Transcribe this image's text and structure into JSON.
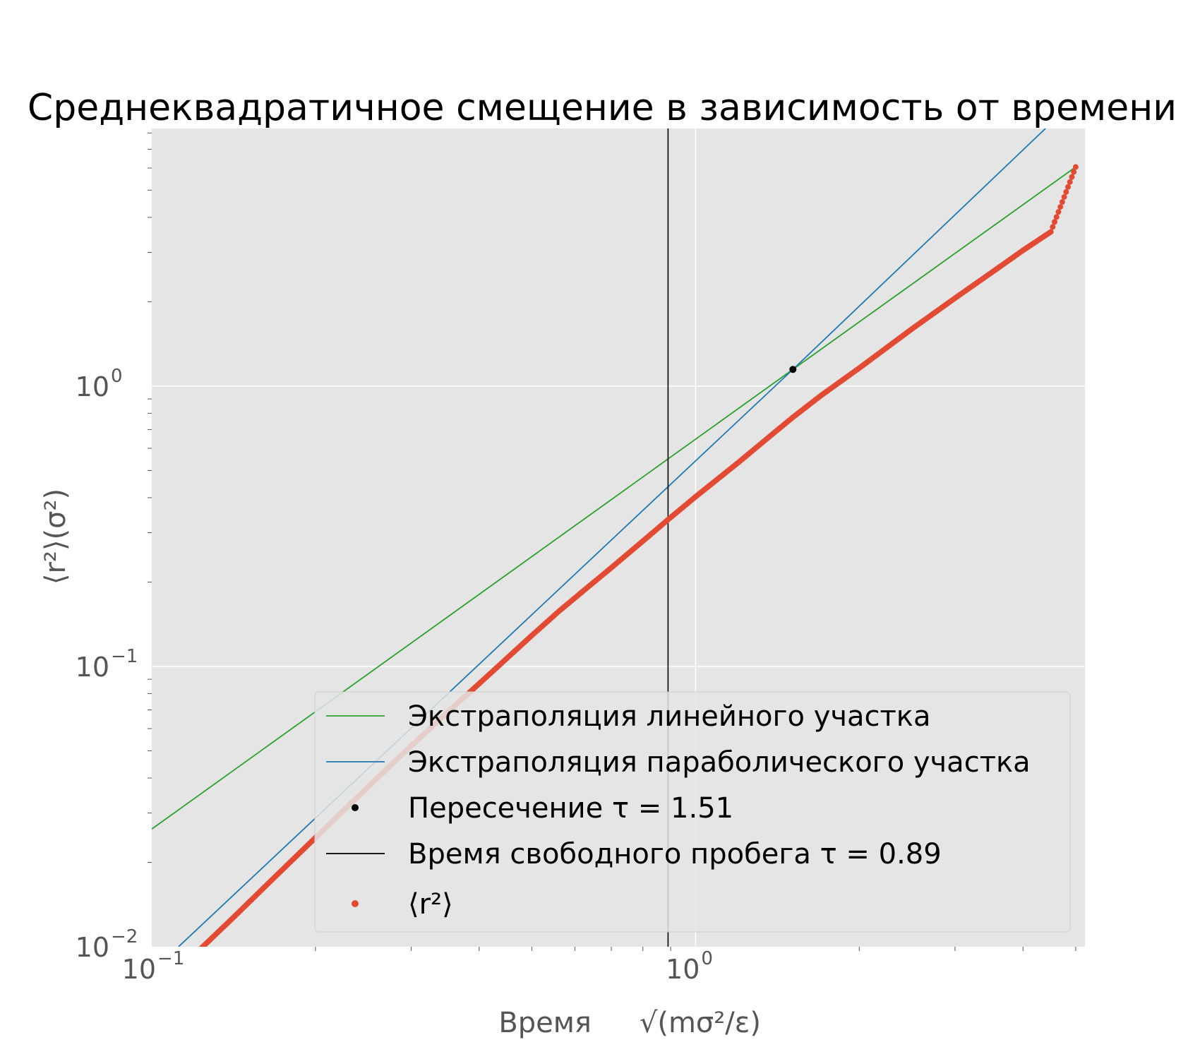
{
  "chart_data": {
    "type": "line",
    "title": "Среднеквадратичное смещение в зависимость от времени",
    "xlabel": "Время",
    "xlabel_unit": "√(mσ²/ε)",
    "ylabel": "⟨r²⟩(σ²)",
    "xscale": "log",
    "yscale": "log",
    "xlim": [
      0.1,
      5.2
    ],
    "ylim": [
      0.01,
      8.3
    ],
    "grid": true,
    "legend_position": "lower-right",
    "xticks": [
      {
        "base": "10",
        "exp": "−1",
        "value": 0.1
      },
      {
        "base": "10",
        "exp": "0",
        "value": 1
      }
    ],
    "yticks": [
      {
        "base": "10",
        "exp": "−2",
        "value": 0.01
      },
      {
        "base": "10",
        "exp": "−1",
        "value": 0.1
      },
      {
        "base": "10",
        "exp": "0",
        "value": 1
      }
    ],
    "series": [
      {
        "name": "Экстраполяция линейного участка",
        "kind": "line",
        "color": "#2ca02c",
        "x": [
          0.1,
          1.51,
          5.0
        ],
        "y": [
          0.0263,
          1.147,
          6.05
        ]
      },
      {
        "name": "Экстраполяция параболического участка",
        "kind": "line",
        "color": "#1f77b4",
        "x": [
          0.112,
          1.51,
          4.4
        ],
        "y": [
          0.01,
          1.147,
          8.3
        ]
      },
      {
        "name": "Пересечение τ = 1.51",
        "kind": "point",
        "color": "#000000",
        "x": [
          1.51
        ],
        "y": [
          1.147
        ]
      },
      {
        "name": "Время свободного пробега τ = 0.89",
        "kind": "vline",
        "color": "#000000",
        "x": [
          0.89
        ]
      },
      {
        "name": "⟨r²⟩",
        "kind": "markers",
        "color": "#e24a33",
        "x": [
          0.1,
          0.12,
          0.13,
          0.14,
          0.16,
          0.18,
          0.2,
          0.22,
          0.25,
          0.28,
          0.32,
          0.36,
          0.4,
          0.45,
          0.5,
          0.56,
          0.63,
          0.7,
          0.8,
          0.89,
          1.0,
          1.2,
          1.4,
          1.51,
          1.7,
          2.0,
          2.5,
          3.0,
          3.5,
          4.0,
          4.5,
          5.0
        ],
        "y": [
          0.0068,
          0.0094,
          0.0109,
          0.0125,
          0.0161,
          0.0201,
          0.0245,
          0.0293,
          0.0372,
          0.0459,
          0.0585,
          0.0722,
          0.0868,
          0.107,
          0.129,
          0.157,
          0.19,
          0.225,
          0.28,
          0.334,
          0.403,
          0.535,
          0.686,
          0.774,
          0.925,
          1.16,
          1.6,
          2.06,
          2.54,
          3.05,
          3.55,
          6.05
        ]
      }
    ]
  },
  "legend": {
    "items": [
      {
        "label": "Экстраполяция линейного участка",
        "color": "#2ca02c",
        "kind": "line"
      },
      {
        "label": "Экстраполяция параболического участка",
        "color": "#1f77b4",
        "kind": "line"
      },
      {
        "label": "Пересечение τ = 1.51",
        "color": "#000000",
        "kind": "point"
      },
      {
        "label": "Время свободного пробега τ = 0.89",
        "color": "#000000",
        "kind": "line"
      },
      {
        "label": "⟨r²⟩",
        "color": "#e24a33",
        "kind": "point"
      }
    ]
  },
  "colors": {
    "plot_background": "#e5e5e5",
    "grid": "#ffffff",
    "data": "#e24a33"
  }
}
